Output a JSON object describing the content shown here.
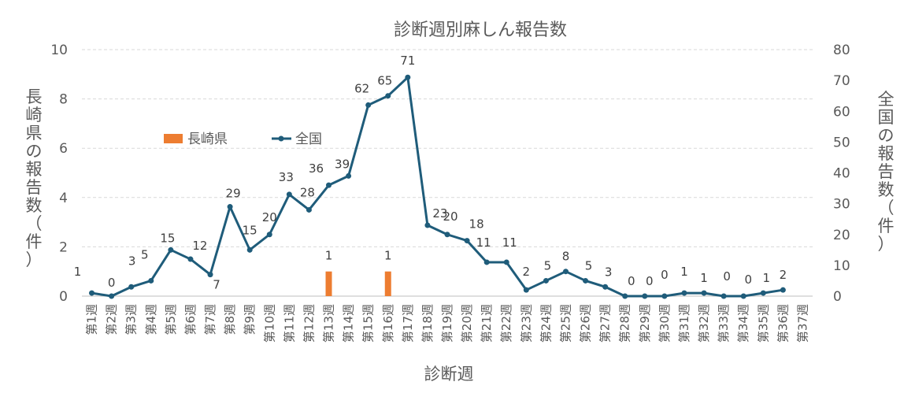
{
  "chart_data": {
    "type": "bar",
    "title": "診断週別麻しん報告数",
    "xlabel": "診断週",
    "ylabel": "長崎県の報告数（件）",
    "y2label": "全国の報告数（件）",
    "ylim": [
      0,
      10
    ],
    "y2lim": [
      0,
      80
    ],
    "yticks": [
      "0",
      "2",
      "4",
      "6",
      "8",
      "10"
    ],
    "y2ticks": [
      "0",
      "10",
      "20",
      "30",
      "40",
      "50",
      "60",
      "70",
      "80"
    ],
    "grid": true,
    "legend_position": "left-middle",
    "categories": [
      "第1週",
      "第2週",
      "第3週",
      "第4週",
      "第5週",
      "第6週",
      "第7週",
      "第8週",
      "第9週",
      "第10週",
      "第11週",
      "第12週",
      "第13週",
      "第14週",
      "第15週",
      "第16週",
      "第17週",
      "第18週",
      "第19週",
      "第20週",
      "第21週",
      "第22週",
      "第23週",
      "第24週",
      "第25週",
      "第26週",
      "第27週",
      "第28週",
      "第29週",
      "第30週",
      "第31週",
      "第32週",
      "第33週",
      "第34週",
      "第35週",
      "第36週",
      "第37週"
    ],
    "series": [
      {
        "name": "長崎県",
        "type": "bar",
        "axis": "left",
        "color": "#ED7D31",
        "values": [
          0,
          0,
          0,
          0,
          0,
          0,
          0,
          0,
          0,
          0,
          0,
          0,
          1,
          0,
          0,
          1,
          0,
          0,
          0,
          0,
          0,
          0,
          0,
          0,
          0,
          0,
          0,
          0,
          0,
          0,
          0,
          0,
          0,
          0,
          0,
          0,
          null
        ]
      },
      {
        "name": "全国",
        "type": "line",
        "axis": "right",
        "color": "#1F5C7A",
        "values": [
          1,
          0,
          3,
          5,
          15,
          12,
          7,
          29,
          15,
          20,
          33,
          28,
          36,
          39,
          62,
          65,
          71,
          23,
          20,
          18,
          11,
          11,
          2,
          5,
          8,
          5,
          3,
          0,
          0,
          0,
          1,
          1,
          0,
          0,
          1,
          2,
          null
        ]
      }
    ],
    "bar_labels": [
      {
        "category": "第13週",
        "text": "1"
      },
      {
        "category": "第16週",
        "text": "1"
      }
    ],
    "line_labels": [
      "0",
      "3",
      "5",
      "15",
      "12",
      "7",
      "29",
      "15",
      "20",
      "33",
      "28",
      "36",
      "39",
      "62",
      "65",
      "71",
      "23",
      "20",
      "18",
      "11",
      "11",
      "2",
      "5",
      "8",
      "5",
      "3",
      "0",
      "0",
      "0",
      "1",
      "1",
      "0",
      "0",
      "1",
      "2"
    ],
    "extra_label": "1"
  }
}
